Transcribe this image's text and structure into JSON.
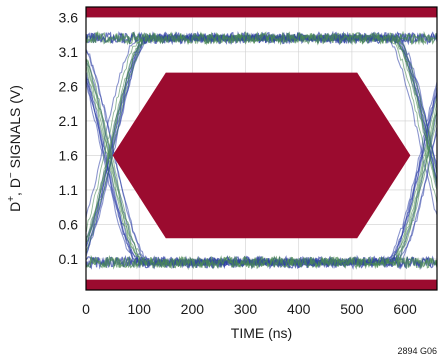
{
  "chart_data": {
    "type": "line",
    "title": "",
    "xlabel": "TIME (ns)",
    "ylabel_parts": [
      "D",
      "+",
      ", D",
      "−",
      " SIGNALS (V)"
    ],
    "figure_id": "2894 G06",
    "xlim": [
      0,
      660
    ],
    "ylim": [
      -0.35,
      3.75
    ],
    "x_ticks": [
      0,
      100,
      200,
      300,
      400,
      500,
      600
    ],
    "y_ticks": [
      0.1,
      0.6,
      1.1,
      1.6,
      2.1,
      2.6,
      3.1,
      3.6
    ],
    "y_tick_labels": [
      "0.1",
      "0.6",
      "1.1",
      "1.6",
      "2.1",
      "2.6",
      "3.1",
      "3.6"
    ],
    "grid": true,
    "eye_mask": {
      "polygon": [
        [
          50,
          1.6
        ],
        [
          150,
          2.8
        ],
        [
          510,
          2.8
        ],
        [
          610,
          1.6
        ],
        [
          510,
          0.4
        ],
        [
          150,
          0.4
        ]
      ],
      "top_band": [
        3.6,
        3.75
      ],
      "bottom_band": [
        -0.35,
        -0.2
      ]
    },
    "eye_diagram": {
      "high_level": 3.3,
      "low_level": 0.05,
      "crossing_left_start": -30,
      "crossing_left_end": 110,
      "crossing_right_start": 570,
      "crossing_right_end": 710
    },
    "colors": {
      "mask": "#9b0b2f",
      "trace_blue": "#2e3fa6",
      "trace_green": "#4a8a52",
      "grid": "#cfcfcf",
      "axes": "#000000"
    }
  }
}
